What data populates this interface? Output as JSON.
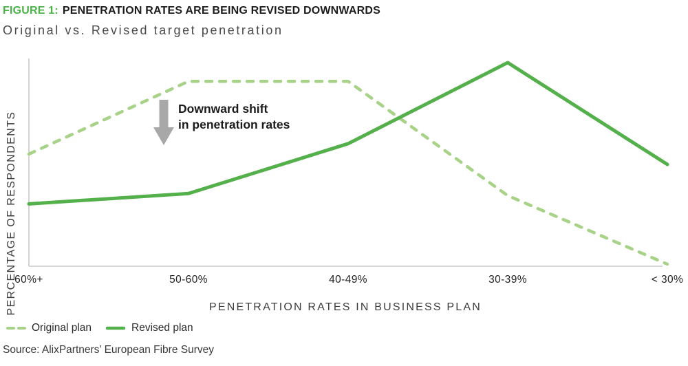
{
  "title": {
    "figure_label": "FIGURE 1:",
    "text": "PENETRATION RATES ARE BEING REVISED DOWNWARDS"
  },
  "subtitle": "Original vs. Revised target penetration",
  "annotation": {
    "line1": "Downward shift",
    "line2": "in penetration rates"
  },
  "legend": {
    "items": [
      {
        "label": "Original plan",
        "style": "dashed"
      },
      {
        "label": "Revised plan",
        "style": "solid"
      }
    ]
  },
  "source": "Source: AlixPartners’ European Fibre Survey",
  "colors": {
    "accent_green": "#4bb448",
    "light_green": "#a7d288",
    "solid_green": "#54b04a",
    "arrow_gray": "#a8a8a8",
    "axis_gray": "#c6c6c6"
  },
  "chart_data": {
    "type": "line",
    "title": "Original vs. Revised target penetration",
    "categories": [
      "60%+",
      "50-60%",
      "40-49%",
      "30-39%",
      "< 30%"
    ],
    "series": [
      {
        "name": "Original plan",
        "style": "dashed",
        "color": "#a7d288",
        "values": [
          54,
          89,
          89,
          34,
          1
        ]
      },
      {
        "name": "Revised plan",
        "style": "solid",
        "color": "#54b04a",
        "values": [
          30,
          35,
          59,
          98,
          49
        ]
      }
    ],
    "values_unit": "relative height, y-axis unlabeled (percent of respondents)",
    "xlabel": "PENETRATION RATES IN BUSINESS PLAN",
    "ylabel": "PERCENTAGE OF RESPONDENTS",
    "ylim": [
      0,
      100
    ],
    "grid": false,
    "y_tick_labels_visible": false,
    "legend_position": "bottom-left",
    "annotation_text": "Downward shift in penetration rates"
  }
}
